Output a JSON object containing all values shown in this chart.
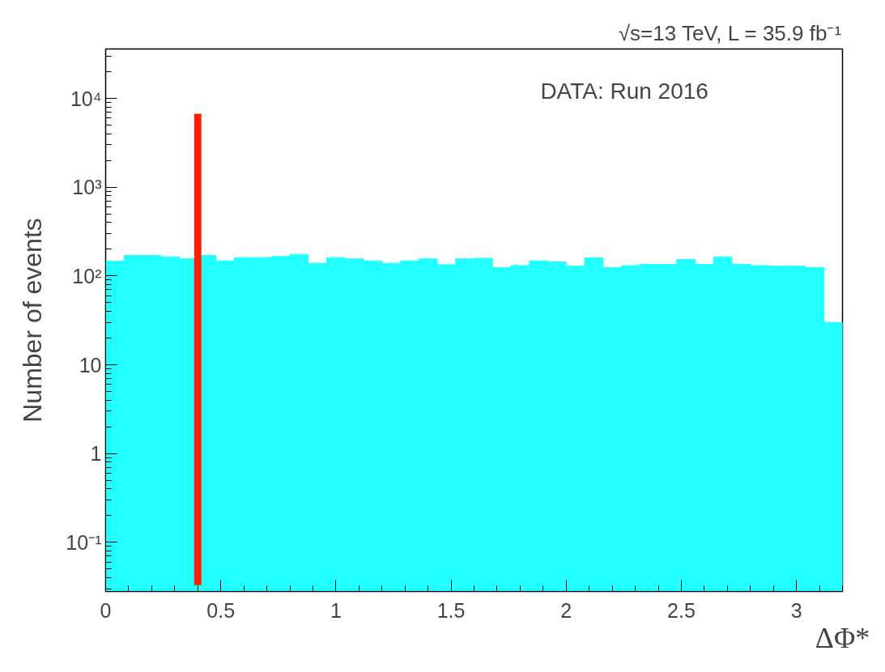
{
  "chart_data": {
    "type": "histogram",
    "title": "√s=13 TeV, L = 35.9 fb⁻¹",
    "xlabel": "ΔΦ*",
    "ylabel": "Number of events",
    "annotations": [
      "DATA: Run 2016"
    ],
    "bins": [
      0,
      0.08,
      0.16,
      0.24,
      0.32,
      0.4,
      0.48,
      0.56,
      0.64,
      0.72,
      0.8,
      0.88,
      0.96,
      1.04,
      1.12,
      1.2,
      1.28,
      1.36,
      1.44,
      1.52,
      1.6,
      1.68,
      1.76,
      1.84,
      1.92,
      2.0,
      2.08,
      2.16,
      2.24,
      2.32,
      2.4,
      2.48,
      2.56,
      2.64,
      2.72,
      2.8,
      2.88,
      2.96,
      3.04,
      3.12,
      3.2
    ],
    "values": [
      147,
      170,
      170,
      164,
      156,
      170,
      148,
      161,
      161,
      166,
      175,
      139,
      161,
      156,
      148,
      139,
      148,
      156,
      134,
      156,
      158,
      124,
      131,
      148,
      144,
      129,
      160,
      124,
      131,
      135,
      135,
      154,
      135,
      164,
      135,
      131,
      129,
      129,
      124,
      30
    ],
    "color": "#22ffff",
    "series": [
      {
        "type": "line",
        "color": "#ff2200",
        "x": [
          0.4,
          0.4
        ],
        "values": [
          0.033,
          6700
        ]
      }
    ],
    "log": "y",
    "xlim": [
      0,
      3.2
    ],
    "xticks": [
      0,
      0.5,
      1,
      1.5,
      2,
      2.5,
      3
    ],
    "ylim": [
      0.028,
      36000
    ],
    "yticks": [
      {
        "value": 0.1,
        "label": "10⁻¹"
      },
      1,
      10,
      {
        "value": 100,
        "label": "10²"
      },
      {
        "value": 1000,
        "label": "10³"
      },
      {
        "value": 10000,
        "label": "10⁴"
      }
    ],
    "grid": false
  }
}
